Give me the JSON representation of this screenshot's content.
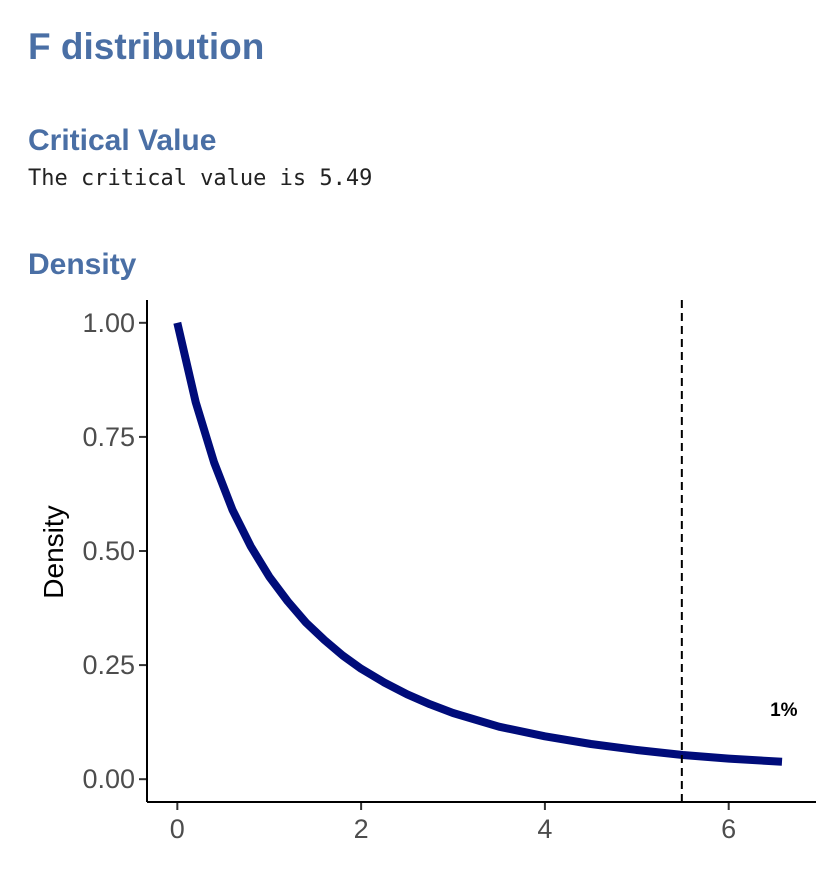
{
  "page": {
    "title": "F distribution",
    "critical_section_title": "Critical Value",
    "critical_text": "The critical value is 5.49",
    "density_section_title": "Density"
  },
  "chart_data": {
    "type": "line",
    "title": "",
    "xlabel": "",
    "ylabel": "Density",
    "xlim": [
      -0.33,
      6.95
    ],
    "ylim": [
      -0.05,
      1.05
    ],
    "x_ticks": [
      0,
      2,
      4,
      6
    ],
    "y_ticks": [
      0,
      0.25,
      0.5,
      0.75,
      1.0
    ],
    "x_tick_labels": [
      "0",
      "2",
      "4",
      "6"
    ],
    "y_tick_labels": [
      "0.00",
      "0.25",
      "0.50",
      "0.75",
      "1.00"
    ],
    "series": [
      {
        "color": "#000c7a",
        "x": [
          0,
          0.2,
          0.4,
          0.6,
          0.8,
          1.0,
          1.2,
          1.4,
          1.6,
          1.8,
          2.0,
          2.25,
          2.5,
          2.75,
          3.0,
          3.5,
          4.0,
          4.5,
          5.0,
          5.5,
          6.0,
          6.58
        ],
        "y": [
          1.0,
          0.826,
          0.694,
          0.59,
          0.51,
          0.444,
          0.39,
          0.343,
          0.305,
          0.271,
          0.242,
          0.212,
          0.186,
          0.164,
          0.145,
          0.115,
          0.094,
          0.077,
          0.064,
          0.053,
          0.045,
          0.038
        ]
      }
    ],
    "critical_line": {
      "x": 5.49,
      "style": "dashed",
      "color": "#000000"
    },
    "annotations": [
      {
        "text": "1%",
        "x": 6.6,
        "y": 0.15
      }
    ],
    "grid": false
  }
}
